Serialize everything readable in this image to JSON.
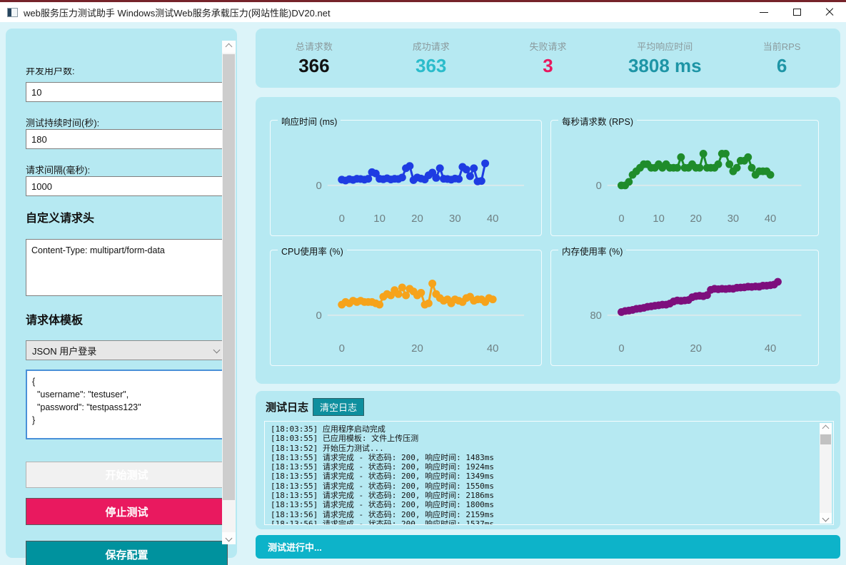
{
  "window": {
    "title": "web服务压力测试助手 Windows测试Web服务承载压力(网站性能)DV20.net"
  },
  "sidebar": {
    "fields": [
      {
        "label": "并发用户数:",
        "value": "10"
      },
      {
        "label": "测试持续时间(秒):",
        "value": "180"
      },
      {
        "label": "请求间隔(毫秒):",
        "value": "1000"
      }
    ],
    "headers_section": {
      "title": "自定义请求头",
      "value": "Content-Type: multipart/form-data"
    },
    "body_section": {
      "title": "请求体模板",
      "template_selected": "JSON 用户登录",
      "body_value": "{\n  \"username\": \"testuser\",\n  \"password\": \"testpass123\"\n}"
    },
    "buttons": {
      "start": "开始测试",
      "stop": "停止测试",
      "save": "保存配置"
    }
  },
  "stats": {
    "items": [
      {
        "label": "总请求数",
        "value": "366",
        "color": "#121212"
      },
      {
        "label": "成功请求",
        "value": "363",
        "color": "#2bbccb"
      },
      {
        "label": "失败请求",
        "value": "3",
        "color": "#e8175e"
      },
      {
        "label": "平均响应时间",
        "value": "3808 ms",
        "color": "#1e95a6"
      },
      {
        "label": "当前RPS",
        "value": "6",
        "color": "#1e95a6"
      }
    ]
  },
  "chart_data": [
    {
      "type": "line",
      "title": "响应时间 (ms)",
      "color": "#1e3ce2",
      "ytick_label": "0",
      "ylim": [
        0,
        12000
      ],
      "xticks": [
        0,
        10,
        20,
        30,
        40
      ],
      "xlim": [
        0,
        43
      ],
      "values": [
        1300,
        1100,
        1400,
        1250,
        1500,
        1450,
        1300,
        1500,
        3000,
        2700,
        1500,
        1400,
        1600,
        1350,
        1500,
        1450,
        1800,
        3900,
        4400,
        1200,
        1800,
        1550,
        1350,
        2300,
        2900,
        1700,
        3900,
        1500,
        1450,
        1300,
        1550,
        1450,
        4200,
        3600,
        2100,
        3900,
        900,
        1000,
        5000
      ]
    },
    {
      "type": "line",
      "title": "每秒请求数 (RPS)",
      "color": "#1f8c2b",
      "ytick_label": "0",
      "ylim": [
        0,
        15
      ],
      "xticks": [
        0,
        10,
        20,
        30,
        40
      ],
      "xlim": [
        0,
        43
      ],
      "values": [
        0,
        0,
        1,
        3,
        4,
        5,
        6,
        6,
        5,
        5,
        6,
        5,
        6,
        5,
        5,
        5,
        8,
        5,
        5,
        6,
        5,
        5,
        9,
        5,
        5,
        5,
        6,
        9,
        9,
        6,
        4,
        5,
        7,
        7,
        8,
        5,
        3,
        4,
        4,
        4,
        3
      ]
    },
    {
      "type": "line",
      "title": "CPU使用率 (%)",
      "color": "#f6a31b",
      "ytick_label": "0",
      "ylim": [
        0,
        40
      ],
      "xticks": [
        0,
        20,
        40
      ],
      "xlim": [
        0,
        43
      ],
      "values": [
        8,
        10,
        9,
        11,
        10,
        11,
        10,
        10,
        10,
        9,
        8,
        14,
        16,
        15,
        19,
        16,
        21,
        15,
        20,
        18,
        15,
        17,
        8,
        9,
        24,
        16,
        13,
        11,
        12,
        9,
        12,
        11,
        10,
        13,
        14,
        11,
        12,
        12,
        10,
        13,
        12
      ]
    },
    {
      "type": "line",
      "title": "内存使用率 (%)",
      "color": "#7d0f7d",
      "ytick_label": "80",
      "ylim": [
        80,
        105
      ],
      "xticks": [
        0,
        20,
        40
      ],
      "xlim": [
        0,
        43
      ],
      "values": [
        81.5,
        82,
        82.2,
        82.5,
        83,
        83.2,
        83.5,
        84,
        84.2,
        84.5,
        84.7,
        85,
        85,
        85.5,
        86.5,
        87,
        86.8,
        87,
        87.2,
        88.5,
        89,
        89.2,
        89,
        89.5,
        92,
        92.5,
        92.3,
        92.5,
        92.4,
        92.6,
        92.5,
        93,
        93.1,
        93.2,
        93.5,
        93.4,
        93.6,
        93.5,
        94,
        94,
        94.2,
        94.5,
        95.8
      ]
    }
  ],
  "log": {
    "title": "测试日志",
    "clear_button": "清空日志",
    "lines": [
      "[18:03:35] 应用程序启动完成",
      "[18:03:55] 已应用模板: 文件上传压测",
      "[18:13:52] 开始压力测试...",
      "[18:13:55] 请求完成 - 状态码: 200, 响应时间: 1483ms",
      "[18:13:55] 请求完成 - 状态码: 200, 响应时间: 1924ms",
      "[18:13:55] 请求完成 - 状态码: 200, 响应时间: 1349ms",
      "[18:13:55] 请求完成 - 状态码: 200, 响应时间: 1550ms",
      "[18:13:55] 请求完成 - 状态码: 200, 响应时间: 2186ms",
      "[18:13:55] 请求完成 - 状态码: 200, 响应时间: 1800ms",
      "[18:13:56] 请求完成 - 状态码: 200, 响应时间: 2159ms",
      "[18:13:56] 请求完成 - 状态码: 200, 响应时间: 1537ms"
    ]
  },
  "status_bar": {
    "text": "测试进行中..."
  }
}
